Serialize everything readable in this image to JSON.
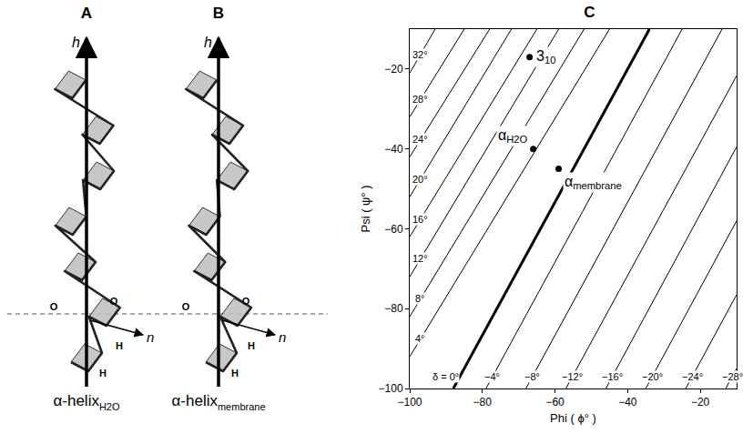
{
  "panels": [
    {
      "letter": "A",
      "axis_label": "h",
      "vector_label": "n",
      "atom_labels": [
        "O",
        "O",
        "H",
        "H"
      ],
      "caption": "α-helix",
      "caption_subscript": "H2O"
    },
    {
      "letter": "B",
      "axis_label": "h",
      "vector_label": "n",
      "atom_labels": [
        "O",
        "O",
        "H",
        "H"
      ],
      "caption": "α-helix",
      "caption_subscript": "membrane"
    }
  ],
  "chart_data": {
    "type": "line",
    "title": "C",
    "x_label": "Phi ( ϕ° )",
    "y_label": "Psi ( ψ° )",
    "xlim": [
      -100,
      -10
    ],
    "ylim": [
      -100,
      -10
    ],
    "xticks": [
      -100,
      -80,
      -60,
      -40,
      -20
    ],
    "yticks": [
      -100,
      -80,
      -60,
      -40,
      -20
    ],
    "grid": false,
    "color": "#000000",
    "contours": [
      {
        "delta": 32,
        "label": "32°",
        "x": [
          -100,
          -93
        ],
        "y": [
          -21,
          -10
        ]
      },
      {
        "delta": 28,
        "label": "28°",
        "x": [
          -100,
          -85
        ],
        "y": [
          -32,
          -10
        ]
      },
      {
        "delta": 24,
        "label": "24°",
        "x": [
          -100,
          -78
        ],
        "y": [
          -42,
          -10
        ]
      },
      {
        "delta": 20,
        "label": "20°",
        "x": [
          -100,
          -72
        ],
        "y": [
          -52,
          -10
        ]
      },
      {
        "delta": 16,
        "label": "16°",
        "x": [
          -100,
          -65
        ],
        "y": [
          -62,
          -10
        ]
      },
      {
        "delta": 12,
        "label": "12°",
        "x": [
          -100,
          -59
        ],
        "y": [
          -72,
          -10
        ]
      },
      {
        "delta": 8,
        "label": "8°",
        "x": [
          -100,
          -52
        ],
        "y": [
          -82,
          -10
        ]
      },
      {
        "delta": 4,
        "label": "4°",
        "x": [
          -100,
          -45
        ],
        "y": [
          -92,
          -10
        ]
      },
      {
        "delta": 0,
        "label": "δ = 0°",
        "x": [
          -88,
          -34
        ],
        "y": [
          -100,
          -10
        ]
      },
      {
        "delta": -4,
        "label": "−4°",
        "x": [
          -79,
          -25
        ],
        "y": [
          -100,
          -10
        ]
      },
      {
        "delta": -8,
        "label": "−8°",
        "x": [
          -68,
          -14
        ],
        "y": [
          -100,
          -10
        ]
      },
      {
        "delta": -12,
        "label": "−12°",
        "x": [
          -57,
          -10
        ],
        "y": [
          -100,
          -21.7
        ]
      },
      {
        "delta": -16,
        "label": "−16°",
        "x": [
          -46,
          -10
        ],
        "y": [
          -100,
          -39.5
        ]
      },
      {
        "delta": -20,
        "label": "−20°",
        "x": [
          -35,
          -10
        ],
        "y": [
          -100,
          -58
        ]
      },
      {
        "delta": -24,
        "label": "−24°",
        "x": [
          -24,
          -10
        ],
        "y": [
          -100,
          -76.5
        ]
      },
      {
        "delta": -28,
        "label": "−28°",
        "x": [
          -13,
          -10
        ],
        "y": [
          -100,
          -95
        ]
      }
    ],
    "points": [
      {
        "label": "3",
        "subscript": "10",
        "x": -67,
        "y": -17
      },
      {
        "label": "α",
        "subscript": "H2O",
        "x": -66,
        "y": -40
      },
      {
        "label": "α",
        "subscript": "membrane",
        "x": -59,
        "y": -45
      }
    ],
    "marker": "circle"
  }
}
